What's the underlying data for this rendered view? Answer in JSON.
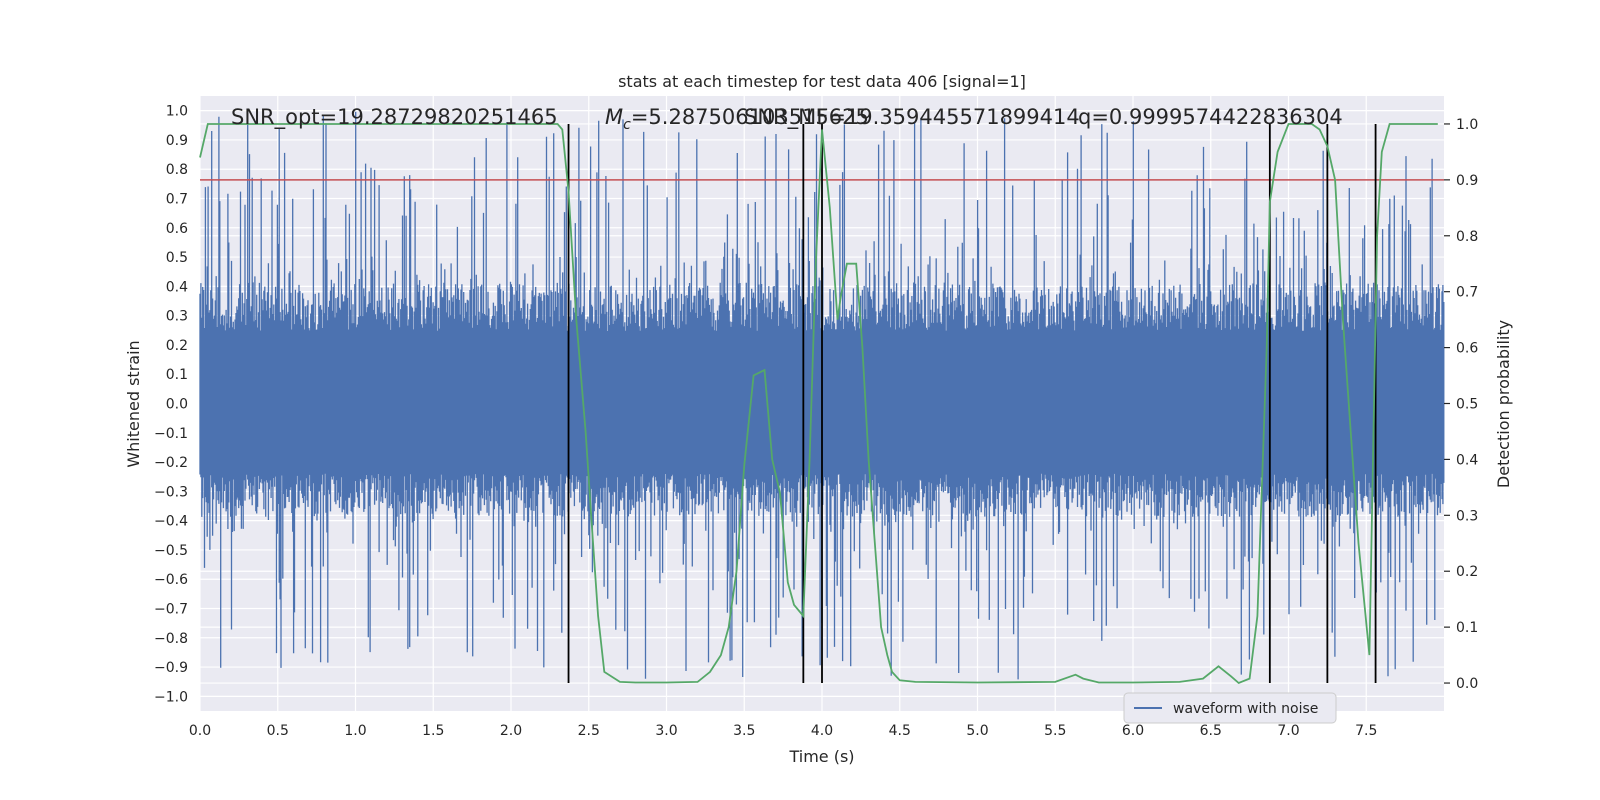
{
  "chart_data": {
    "type": "line",
    "title": "stats at each timestep for test data 406 [signal=1]",
    "xlabel": "Time (s)",
    "ylabel_left": "Whitened strain",
    "ylabel_right": "Detection probability",
    "xlim": [
      0.0,
      8.0
    ],
    "ylim_left": [
      -1.05,
      1.05
    ],
    "ylim_right": [
      -0.05,
      1.05
    ],
    "x_ticks": [
      "0.0",
      "0.5",
      "1.0",
      "1.5",
      "2.0",
      "2.5",
      "3.0",
      "3.5",
      "4.0",
      "4.5",
      "5.0",
      "5.5",
      "6.0",
      "6.5",
      "7.0",
      "7.5"
    ],
    "y_ticks_left": [
      "1.0",
      "0.9",
      "0.8",
      "0.7",
      "0.6",
      "0.5",
      "0.4",
      "0.3",
      "0.2",
      "0.1",
      "0.0",
      "−0.1",
      "−0.2",
      "−0.3",
      "−0.4",
      "−0.5",
      "−0.6",
      "−0.7",
      "−0.8",
      "−0.9",
      "−1.0"
    ],
    "y_ticks_right": [
      "1.0",
      "0.9",
      "0.8",
      "0.7",
      "0.6",
      "0.5",
      "0.4",
      "0.3",
      "0.2",
      "0.1",
      "0.0"
    ],
    "annotations": [
      "SNR_opt=19.28729820251465",
      "=5.287506103515625",
      "SNR_MF=19.359445571899414",
      "q=0.9999574422836304"
    ],
    "mc_symbol": "M",
    "mc_subscript": "c",
    "legend_label": "waveform with noise",
    "legend_position": "lower-right",
    "threshold": 0.9,
    "event_lines_x": [
      2.37,
      3.88,
      4.0,
      6.88,
      7.25,
      7.56
    ],
    "waveform_envelope": {
      "typical_max": 0.45,
      "typical_min": -0.4,
      "peak_max": 1.0,
      "peak_min": -0.94
    },
    "probability_series": {
      "name": "Detection probability",
      "x": [
        0.0,
        0.05,
        0.1,
        0.5,
        1.0,
        1.5,
        2.0,
        2.2,
        2.3,
        2.33,
        2.37,
        2.42,
        2.48,
        2.52,
        2.56,
        2.6,
        2.7,
        2.8,
        3.0,
        3.2,
        3.28,
        3.35,
        3.4,
        3.45,
        3.5,
        3.56,
        3.63,
        3.68,
        3.73,
        3.78,
        3.82,
        3.88,
        3.92,
        3.96,
        4.0,
        4.05,
        4.1,
        4.12,
        4.16,
        4.22,
        4.26,
        4.3,
        4.38,
        4.42,
        4.45,
        4.5,
        4.6,
        5.0,
        5.5,
        5.63,
        5.68,
        5.78,
        6.0,
        6.3,
        6.45,
        6.55,
        6.63,
        6.68,
        6.75,
        6.8,
        6.86,
        6.88,
        6.93,
        7.0,
        7.1,
        7.15,
        7.2,
        7.25,
        7.3,
        7.35,
        7.45,
        7.52,
        7.57,
        7.6,
        7.65,
        7.7,
        7.8,
        7.9,
        7.96
      ],
      "y": [
        0.94,
        1.0,
        1.0,
        1.0,
        1.0,
        1.0,
        1.0,
        1.0,
        1.0,
        0.99,
        0.88,
        0.65,
        0.45,
        0.28,
        0.12,
        0.02,
        0.002,
        0.001,
        0.001,
        0.002,
        0.02,
        0.05,
        0.1,
        0.2,
        0.39,
        0.55,
        0.56,
        0.4,
        0.34,
        0.18,
        0.14,
        0.12,
        0.4,
        0.75,
        0.99,
        0.85,
        0.65,
        0.69,
        0.75,
        0.75,
        0.6,
        0.4,
        0.1,
        0.05,
        0.02,
        0.005,
        0.002,
        0.001,
        0.002,
        0.015,
        0.008,
        0.001,
        0.001,
        0.002,
        0.008,
        0.03,
        0.012,
        0.0,
        0.008,
        0.12,
        0.6,
        0.86,
        0.95,
        1.0,
        1.0,
        1.0,
        0.99,
        0.96,
        0.9,
        0.65,
        0.25,
        0.05,
        0.8,
        0.95,
        1.0,
        1.0,
        1.0,
        1.0,
        1.0
      ]
    },
    "colors": {
      "background": "#eaeaf2",
      "grid": "#ffffff",
      "waveform": "#4c72b0",
      "probability": "#55a868",
      "threshold": "#c44e52",
      "event_lines": "#000000"
    }
  }
}
